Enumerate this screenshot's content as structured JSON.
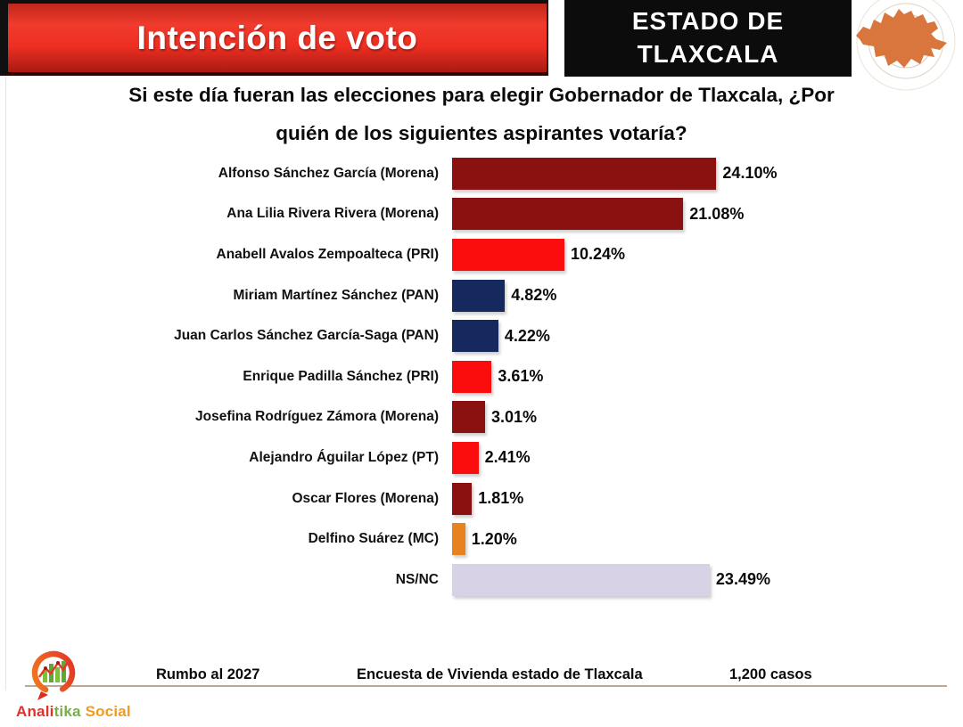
{
  "header": {
    "title": "Intención de voto",
    "state_line1": "ESTADO DE",
    "state_line2": "TLAXCALA",
    "banner_color": "#e8281c",
    "state_box_color": "#0c0c0c",
    "map_color": "#d9763d"
  },
  "question": {
    "line1": "Si este día fueran las elecciones para elegir Gobernador de Tlaxcala, ¿Por",
    "line2": "quién de los siguientes aspirantes votaría?"
  },
  "chart_data": {
    "type": "bar",
    "orientation": "horizontal",
    "title": "Si este día fueran las elecciones para elegir Gobernador de Tlaxcala, ¿Por quién de los siguientes aspirantes votaría?",
    "xlim": [
      0,
      25
    ],
    "grid": false,
    "legend": false,
    "categories": [
      "Alfonso Sánchez García (Morena)",
      "Ana Lilia Rivera Rivera (Morena)",
      "Anabell Avalos Zempoalteca (PRI)",
      "Miriam Martínez Sánchez (PAN)",
      "Juan Carlos Sánchez García-Saga (PAN)",
      "Enrique Padilla Sánchez (PRI)",
      "Josefina Rodríguez Zámora (Morena)",
      "Alejandro Águilar López (PT)",
      "Oscar Flores (Morena)",
      "Delfino Suárez (MC)",
      "NS/NC"
    ],
    "values": [
      24.1,
      21.08,
      10.24,
      4.82,
      4.22,
      3.61,
      3.01,
      2.41,
      1.81,
      1.2,
      23.49
    ],
    "value_labels": [
      "24.10%",
      "21.08%",
      "10.24%",
      "4.82%",
      "4.22%",
      "3.61%",
      "3.01%",
      "2.41%",
      "1.81%",
      "1.20%",
      "23.49%"
    ],
    "bars": [
      {
        "label": "Alfonso Sánchez García (Morena)",
        "value": 24.1,
        "display": "24.10%",
        "color": "#8b1010"
      },
      {
        "label": "Ana Lilia Rivera Rivera (Morena)",
        "value": 21.08,
        "display": "21.08%",
        "color": "#8b1010"
      },
      {
        "label": "Anabell Avalos Zempoalteca (PRI)",
        "value": 10.24,
        "display": "10.24%",
        "color": "#fc0d0d"
      },
      {
        "label": "Miriam Martínez Sánchez (PAN)",
        "value": 4.82,
        "display": "4.82%",
        "color": "#16295e"
      },
      {
        "label": "Juan Carlos Sánchez García-Saga (PAN)",
        "value": 4.22,
        "display": "4.22%",
        "color": "#16295e"
      },
      {
        "label": "Enrique Padilla Sánchez (PRI)",
        "value": 3.61,
        "display": "3.61%",
        "color": "#fc0d0d"
      },
      {
        "label": "Josefina Rodríguez Zámora (Morena)",
        "value": 3.01,
        "display": "3.01%",
        "color": "#8b1010"
      },
      {
        "label": "Alejandro Águilar López (PT)",
        "value": 2.41,
        "display": "2.41%",
        "color": "#fc0d0d"
      },
      {
        "label": "Oscar Flores (Morena)",
        "value": 1.81,
        "display": "1.81%",
        "color": "#8b1010"
      },
      {
        "label": "Delfino Suárez (MC)",
        "value": 1.2,
        "display": "1.20%",
        "color": "#e8821e"
      },
      {
        "label": "NS/NC",
        "value": 23.49,
        "display": "23.49%",
        "color": "#d8d2e6"
      }
    ]
  },
  "footer": {
    "left": "Rumbo al 2027",
    "center": "Encuesta de Vivienda estado de Tlaxcala",
    "right": "1,200 casos"
  },
  "logo": {
    "name": "Analitika Social",
    "part1": "Anali",
    "part2": "tika",
    "part3": " Social"
  }
}
